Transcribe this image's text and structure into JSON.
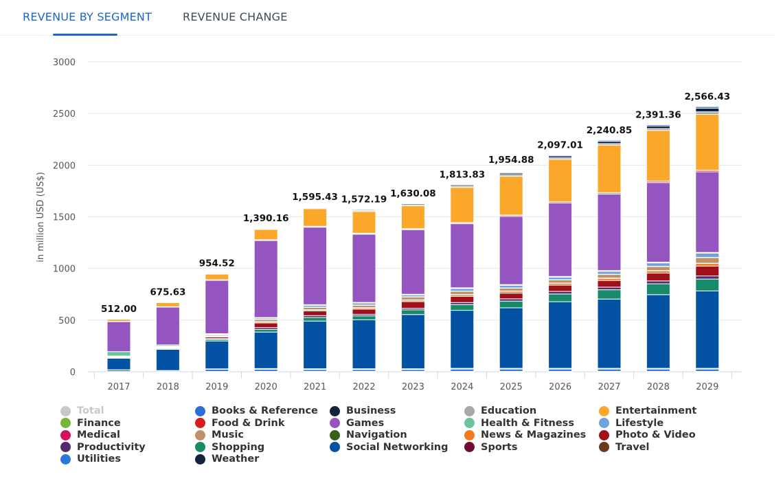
{
  "tabs": [
    {
      "label": "REVENUE BY SEGMENT",
      "active": true
    },
    {
      "label": "REVENUE CHANGE",
      "active": false
    }
  ],
  "chart_data": {
    "type": "bar",
    "stacked": true,
    "ylabel": "in million USD (US$)",
    "ylim": [
      0,
      3000
    ],
    "yticks": [
      0,
      500,
      1000,
      1500,
      2000,
      2500,
      3000
    ],
    "grid": true,
    "legend_position": "bottom",
    "categories": [
      "2017",
      "2018",
      "2019",
      "2020",
      "2021",
      "2022",
      "2023",
      "2024",
      "2025",
      "2026",
      "2027",
      "2028",
      "2029"
    ],
    "totals": [
      512.0,
      675.63,
      954.52,
      1390.16,
      1595.43,
      1572.19,
      1630.08,
      1813.83,
      1954.88,
      2097.01,
      2240.85,
      2391.36,
      2566.43
    ],
    "total_labels": [
      "512.00",
      "675.63",
      "954.52",
      "1,390.16",
      "1,595.43",
      "1,572.19",
      "1,630.08",
      "1,813.83",
      "1,954.88",
      "2,097.01",
      "2,240.85",
      "2,391.36",
      "2,566.43"
    ],
    "total_series": {
      "name": "Total",
      "color": "#c8c8c8",
      "visible": false
    },
    "series": [
      {
        "name": "Books & Reference",
        "color": "#2a6fd6",
        "values": [
          1,
          1,
          2,
          2,
          3,
          3,
          4,
          5,
          8,
          8,
          10,
          12,
          15
        ]
      },
      {
        "name": "Business",
        "color": "#13233a",
        "values": [
          1,
          2,
          3,
          4,
          6,
          8,
          10,
          12,
          15,
          18,
          22,
          25,
          35
        ]
      },
      {
        "name": "Education",
        "color": "#a8a8a8",
        "values": [
          2,
          3,
          4,
          6,
          8,
          10,
          10,
          12,
          15,
          15,
          15,
          18,
          25
        ]
      },
      {
        "name": "Entertainment",
        "color": "#fba82a",
        "values": [
          20,
          40,
          55,
          100,
          170,
          210,
          220,
          340,
          375,
          410,
          460,
          490,
          540
        ]
      },
      {
        "name": "Finance",
        "color": "#7ab538",
        "values": [
          1,
          1,
          2,
          3,
          3,
          3,
          3,
          3,
          3,
          3,
          3,
          3,
          3
        ]
      },
      {
        "name": "Food & Drink",
        "color": "#d81c1c",
        "values": [
          2,
          3,
          4,
          5,
          6,
          7,
          8,
          9,
          10,
          10,
          11,
          12,
          13
        ]
      },
      {
        "name": "Games",
        "color": "#9455c0",
        "values": [
          290,
          365.63,
          515.52,
          745,
          750,
          660,
          625,
          620,
          660,
          710,
          740,
          770,
          780
        ]
      },
      {
        "name": "Health & Fitness",
        "color": "#6cc49c",
        "values": [
          43,
          12,
          8,
          6,
          6,
          6,
          6,
          7,
          7,
          7,
          8,
          8,
          8
        ]
      },
      {
        "name": "Lifestyle",
        "color": "#70a2de",
        "values": [
          3,
          4,
          6,
          12,
          18,
          20,
          18,
          25,
          25,
          25,
          28,
          32,
          40
        ]
      },
      {
        "name": "Medical",
        "color": "#d3105e",
        "values": [
          1,
          1,
          2,
          2,
          2,
          2,
          2,
          2,
          2,
          2,
          2,
          2,
          2
        ]
      },
      {
        "name": "Music",
        "color": "#bf916a",
        "values": [
          3,
          5,
          10,
          20,
          22,
          22,
          28,
          30,
          28,
          30,
          35,
          40,
          55
        ]
      },
      {
        "name": "Navigation",
        "color": "#3a5e1c",
        "values": [
          1,
          1,
          2,
          3,
          3,
          3,
          3,
          3,
          3,
          3,
          3,
          3,
          3
        ]
      },
      {
        "name": "News & Magazines",
        "color": "#f47a20",
        "values": [
          2,
          3,
          5,
          10,
          10,
          12,
          14,
          16,
          18,
          18,
          20,
          22,
          25
        ]
      },
      {
        "name": "Photo & Video",
        "color": "#a0101a",
        "values": [
          5,
          6,
          15,
          45,
          45,
          50,
          65,
          60,
          55,
          60,
          65,
          75,
          95
        ]
      },
      {
        "name": "Productivity",
        "color": "#54296e",
        "values": [
          2,
          3,
          8,
          18,
          18,
          15,
          15,
          20,
          22,
          25,
          25,
          28,
          30
        ]
      },
      {
        "name": "Shopping",
        "color": "#178a6a",
        "values": [
          4,
          8,
          15,
          25,
          35,
          38,
          45,
          55,
          65,
          75,
          90,
          105,
          115
        ]
      },
      {
        "name": "Social Networking",
        "color": "#0452a3",
        "values": [
          112,
          205,
          270,
          353.16,
          461.43,
          474.19,
          525.08,
          561.83,
          585.88,
          645.01,
          670.85,
          713.36,
          749.43
        ]
      },
      {
        "name": "Sports",
        "color": "#700c34",
        "values": [
          1,
          1,
          3,
          4,
          4,
          4,
          4,
          4,
          4,
          4,
          4,
          4,
          4
        ]
      },
      {
        "name": "Travel",
        "color": "#6b3a1c",
        "values": [
          1,
          1,
          2,
          3,
          3,
          3,
          3,
          3,
          3,
          3,
          3,
          3,
          3
        ]
      },
      {
        "name": "Utilities",
        "color": "#2c78da",
        "values": [
          15,
          8,
          20,
          20,
          18,
          18,
          18,
          22,
          22,
          22,
          22,
          22,
          22
        ]
      },
      {
        "name": "Weather",
        "color": "#13233a",
        "values": [
          2,
          2,
          3,
          4,
          4,
          4,
          4,
          4,
          4,
          4,
          4,
          4,
          4
        ]
      }
    ]
  }
}
